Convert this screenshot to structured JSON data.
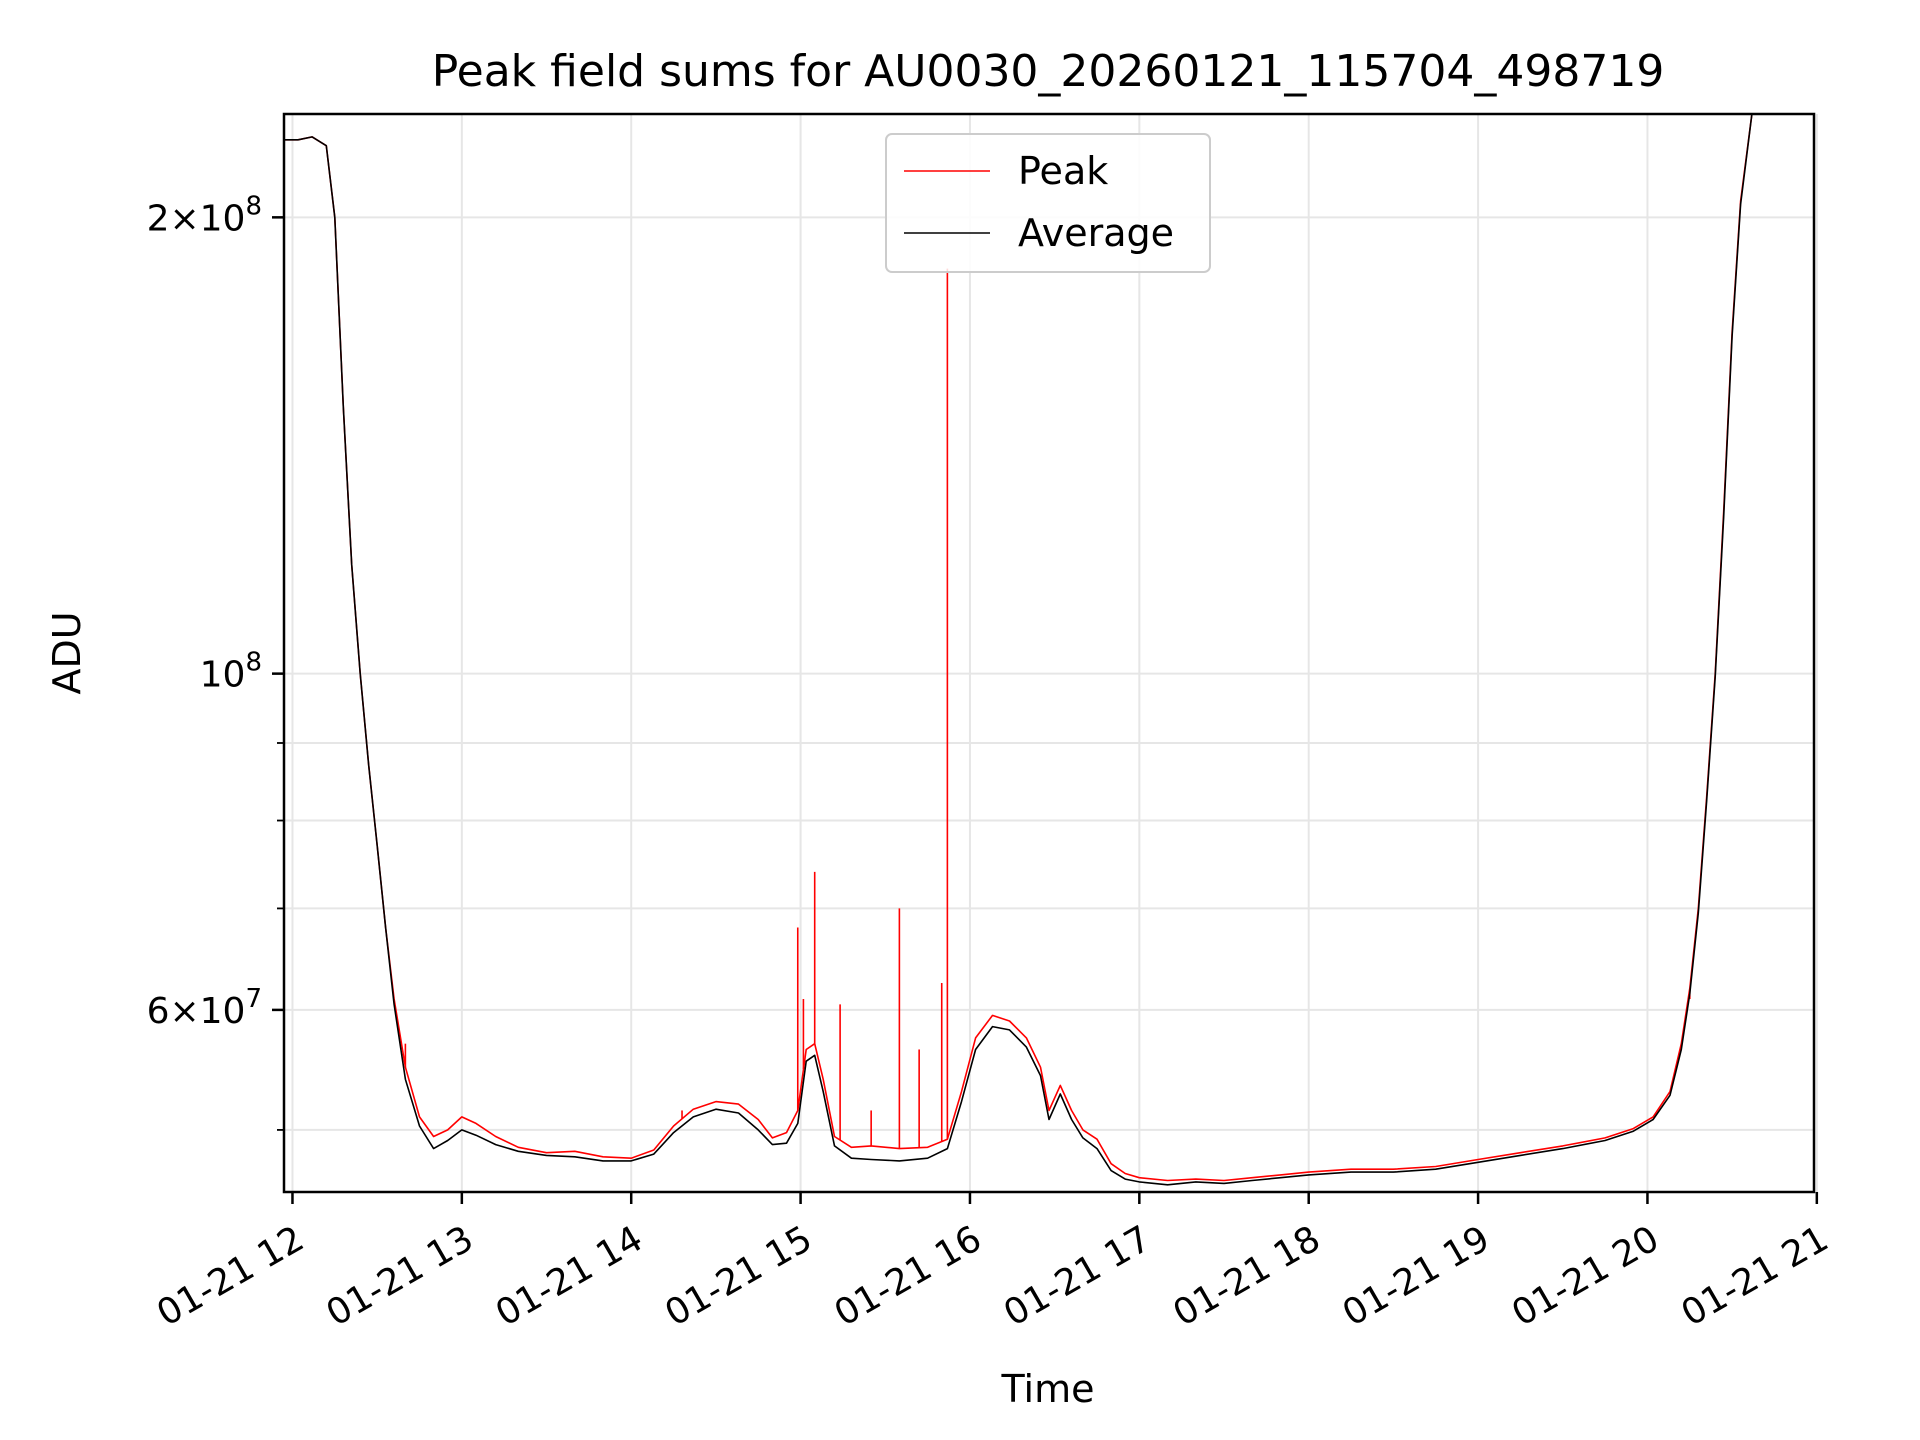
{
  "chart_data": {
    "type": "line",
    "title": "Peak field sums for AU0030_20260121_115704_498719",
    "xlabel": "Time",
    "ylabel": "ADU",
    "y_scale": "log",
    "ylim": [
      45500000,
      234000000
    ],
    "xlim": [
      "2026-01-21 11:57",
      "2026-01-21 20:59"
    ],
    "grid": true,
    "legend_position": "top-center",
    "x_ticks": [
      {
        "t": "2026-01-21 12:00",
        "label": "01-21 12"
      },
      {
        "t": "2026-01-21 13:00",
        "label": "01-21 13"
      },
      {
        "t": "2026-01-21 14:00",
        "label": "01-21 14"
      },
      {
        "t": "2026-01-21 15:00",
        "label": "01-21 15"
      },
      {
        "t": "2026-01-21 16:00",
        "label": "01-21 16"
      },
      {
        "t": "2026-01-21 17:00",
        "label": "01-21 17"
      },
      {
        "t": "2026-01-21 18:00",
        "label": "01-21 18"
      },
      {
        "t": "2026-01-21 19:00",
        "label": "01-21 19"
      },
      {
        "t": "2026-01-21 20:00",
        "label": "01-21 20"
      },
      {
        "t": "2026-01-21 21:00",
        "label": "01-21 21"
      }
    ],
    "y_major_ticks": [
      {
        "value": 60000000,
        "mantissa": "6",
        "sep": "×10",
        "exp": "7"
      },
      {
        "value": 100000000,
        "mantissa": "",
        "sep": "10",
        "exp": "8"
      },
      {
        "value": 200000000,
        "mantissa": "2",
        "sep": "×10",
        "exp": "8"
      }
    ],
    "y_minor_ticks": [
      50000000,
      70000000,
      80000000,
      90000000
    ],
    "series": [
      {
        "name": "Peak",
        "color": "#ff0000",
        "points": [
          [
            "2026-01-21 11:57",
            225000000
          ],
          [
            "2026-01-21 12:02",
            225000000
          ],
          [
            "2026-01-21 12:07",
            226000000
          ],
          [
            "2026-01-21 12:12",
            223000000
          ],
          [
            "2026-01-21 12:15",
            200000000
          ],
          [
            "2026-01-21 12:18",
            150000000
          ],
          [
            "2026-01-21 12:21",
            118000000
          ],
          [
            "2026-01-21 12:24",
            100000000
          ],
          [
            "2026-01-21 12:27",
            87000000
          ],
          [
            "2026-01-21 12:30",
            77000000
          ],
          [
            "2026-01-21 12:33",
            68000000
          ],
          [
            "2026-01-21 12:36",
            61000000
          ],
          [
            "2026-01-21 12:40",
            55000000
          ],
          [
            "2026-01-21 12:45",
            51000000
          ],
          [
            "2026-01-21 12:50",
            49500000
          ],
          [
            "2026-01-21 12:55",
            50000000
          ],
          [
            "2026-01-21 13:00",
            51000000
          ],
          [
            "2026-01-21 13:05",
            50500000
          ],
          [
            "2026-01-21 13:12",
            49500000
          ],
          [
            "2026-01-21 13:20",
            48700000
          ],
          [
            "2026-01-21 13:30",
            48300000
          ],
          [
            "2026-01-21 13:40",
            48400000
          ],
          [
            "2026-01-21 13:50",
            48000000
          ],
          [
            "2026-01-21 14:00",
            47900000
          ],
          [
            "2026-01-21 14:08",
            48500000
          ],
          [
            "2026-01-21 14:15",
            50300000
          ],
          [
            "2026-01-21 14:22",
            51600000
          ],
          [
            "2026-01-21 14:30",
            52200000
          ],
          [
            "2026-01-21 14:38",
            52000000
          ],
          [
            "2026-01-21 14:45",
            50800000
          ],
          [
            "2026-01-21 14:50",
            49400000
          ],
          [
            "2026-01-21 14:55",
            49800000
          ],
          [
            "2026-01-21 14:59",
            51500000
          ],
          [
            "2026-01-21 15:02",
            56500000
          ],
          [
            "2026-01-21 15:05",
            57000000
          ],
          [
            "2026-01-21 15:08",
            54000000
          ],
          [
            "2026-01-21 15:12",
            49500000
          ],
          [
            "2026-01-21 15:18",
            48700000
          ],
          [
            "2026-01-21 15:25",
            48800000
          ],
          [
            "2026-01-21 15:35",
            48600000
          ],
          [
            "2026-01-21 15:45",
            48700000
          ],
          [
            "2026-01-21 15:52",
            49300000
          ],
          [
            "2026-01-21 15:57",
            53000000
          ],
          [
            "2026-01-21 16:02",
            57500000
          ],
          [
            "2026-01-21 16:08",
            59500000
          ],
          [
            "2026-01-21 16:14",
            59000000
          ],
          [
            "2026-01-21 16:20",
            57500000
          ],
          [
            "2026-01-21 16:25",
            55000000
          ],
          [
            "2026-01-21 16:28",
            51500000
          ],
          [
            "2026-01-21 16:32",
            53500000
          ],
          [
            "2026-01-21 16:36",
            51500000
          ],
          [
            "2026-01-21 16:40",
            50000000
          ],
          [
            "2026-01-21 16:45",
            49300000
          ],
          [
            "2026-01-21 16:50",
            47500000
          ],
          [
            "2026-01-21 16:55",
            46800000
          ],
          [
            "2026-01-21 17:00",
            46500000
          ],
          [
            "2026-01-21 17:10",
            46300000
          ],
          [
            "2026-01-21 17:20",
            46400000
          ],
          [
            "2026-01-21 17:30",
            46300000
          ],
          [
            "2026-01-21 17:40",
            46500000
          ],
          [
            "2026-01-21 17:50",
            46700000
          ],
          [
            "2026-01-21 18:00",
            46900000
          ],
          [
            "2026-01-21 18:15",
            47100000
          ],
          [
            "2026-01-21 18:30",
            47100000
          ],
          [
            "2026-01-21 18:45",
            47300000
          ],
          [
            "2026-01-21 19:00",
            47800000
          ],
          [
            "2026-01-21 19:15",
            48300000
          ],
          [
            "2026-01-21 19:30",
            48800000
          ],
          [
            "2026-01-21 19:45",
            49400000
          ],
          [
            "2026-01-21 19:55",
            50100000
          ],
          [
            "2026-01-21 20:02",
            51000000
          ],
          [
            "2026-01-21 20:08",
            53000000
          ],
          [
            "2026-01-21 20:12",
            57000000
          ],
          [
            "2026-01-21 20:15",
            62000000
          ],
          [
            "2026-01-21 20:18",
            70000000
          ],
          [
            "2026-01-21 20:21",
            83000000
          ],
          [
            "2026-01-21 20:24",
            100000000
          ],
          [
            "2026-01-21 20:27",
            128000000
          ],
          [
            "2026-01-21 20:30",
            168000000
          ],
          [
            "2026-01-21 20:33",
            205000000
          ],
          [
            "2026-01-21 20:37",
            234000000
          ]
        ],
        "spikes": [
          [
            "2026-01-21 15:52",
            185000000
          ],
          [
            "2026-01-21 15:05",
            74000000
          ],
          [
            "2026-01-21 14:59",
            68000000
          ],
          [
            "2026-01-21 15:35",
            70000000
          ],
          [
            "2026-01-21 15:50",
            62500000
          ],
          [
            "2026-01-21 15:01",
            61000000
          ],
          [
            "2026-01-21 15:14",
            60500000
          ],
          [
            "2026-01-21 15:42",
            56500000
          ],
          [
            "2026-01-21 15:25",
            51500000
          ],
          [
            "2026-01-21 20:15",
            61000000
          ],
          [
            "2026-01-21 12:40",
            57000000
          ],
          [
            "2026-01-21 14:18",
            51500000
          ]
        ]
      },
      {
        "name": "Average",
        "color": "#000000",
        "points": [
          [
            "2026-01-21 11:57",
            225000000
          ],
          [
            "2026-01-21 12:02",
            225000000
          ],
          [
            "2026-01-21 12:07",
            226000000
          ],
          [
            "2026-01-21 12:12",
            223000000
          ],
          [
            "2026-01-21 12:15",
            200000000
          ],
          [
            "2026-01-21 12:18",
            150000000
          ],
          [
            "2026-01-21 12:21",
            118000000
          ],
          [
            "2026-01-21 12:24",
            100000000
          ],
          [
            "2026-01-21 12:27",
            87000000
          ],
          [
            "2026-01-21 12:30",
            77000000
          ],
          [
            "2026-01-21 12:33",
            68000000
          ],
          [
            "2026-01-21 12:36",
            60500000
          ],
          [
            "2026-01-21 12:40",
            54000000
          ],
          [
            "2026-01-21 12:45",
            50300000
          ],
          [
            "2026-01-21 12:50",
            48600000
          ],
          [
            "2026-01-21 12:55",
            49200000
          ],
          [
            "2026-01-21 13:00",
            50000000
          ],
          [
            "2026-01-21 13:05",
            49600000
          ],
          [
            "2026-01-21 13:12",
            48900000
          ],
          [
            "2026-01-21 13:20",
            48400000
          ],
          [
            "2026-01-21 13:30",
            48100000
          ],
          [
            "2026-01-21 13:40",
            48000000
          ],
          [
            "2026-01-21 13:50",
            47700000
          ],
          [
            "2026-01-21 14:00",
            47700000
          ],
          [
            "2026-01-21 14:08",
            48200000
          ],
          [
            "2026-01-21 14:15",
            49800000
          ],
          [
            "2026-01-21 14:22",
            51000000
          ],
          [
            "2026-01-21 14:30",
            51600000
          ],
          [
            "2026-01-21 14:38",
            51300000
          ],
          [
            "2026-01-21 14:45",
            50000000
          ],
          [
            "2026-01-21 14:50",
            48900000
          ],
          [
            "2026-01-21 14:55",
            49000000
          ],
          [
            "2026-01-21 14:59",
            50500000
          ],
          [
            "2026-01-21 15:02",
            55500000
          ],
          [
            "2026-01-21 15:05",
            56000000
          ],
          [
            "2026-01-21 15:08",
            53000000
          ],
          [
            "2026-01-21 15:12",
            48800000
          ],
          [
            "2026-01-21 15:18",
            47900000
          ],
          [
            "2026-01-21 15:25",
            47800000
          ],
          [
            "2026-01-21 15:35",
            47700000
          ],
          [
            "2026-01-21 15:45",
            47900000
          ],
          [
            "2026-01-21 15:52",
            48600000
          ],
          [
            "2026-01-21 15:57",
            52200000
          ],
          [
            "2026-01-21 16:02",
            56500000
          ],
          [
            "2026-01-21 16:08",
            58500000
          ],
          [
            "2026-01-21 16:14",
            58200000
          ],
          [
            "2026-01-21 16:20",
            56700000
          ],
          [
            "2026-01-21 16:25",
            54300000
          ],
          [
            "2026-01-21 16:28",
            50800000
          ],
          [
            "2026-01-21 16:32",
            52800000
          ],
          [
            "2026-01-21 16:36",
            50800000
          ],
          [
            "2026-01-21 16:40",
            49400000
          ],
          [
            "2026-01-21 16:45",
            48600000
          ],
          [
            "2026-01-21 16:50",
            47000000
          ],
          [
            "2026-01-21 16:55",
            46400000
          ],
          [
            "2026-01-21 17:00",
            46200000
          ],
          [
            "2026-01-21 17:10",
            46000000
          ],
          [
            "2026-01-21 17:20",
            46200000
          ],
          [
            "2026-01-21 17:30",
            46100000
          ],
          [
            "2026-01-21 17:40",
            46300000
          ],
          [
            "2026-01-21 17:50",
            46500000
          ],
          [
            "2026-01-21 18:00",
            46700000
          ],
          [
            "2026-01-21 18:15",
            46900000
          ],
          [
            "2026-01-21 18:30",
            46900000
          ],
          [
            "2026-01-21 18:45",
            47100000
          ],
          [
            "2026-01-21 19:00",
            47600000
          ],
          [
            "2026-01-21 19:15",
            48100000
          ],
          [
            "2026-01-21 19:30",
            48600000
          ],
          [
            "2026-01-21 19:45",
            49200000
          ],
          [
            "2026-01-21 19:55",
            49900000
          ],
          [
            "2026-01-21 20:02",
            50800000
          ],
          [
            "2026-01-21 20:08",
            52700000
          ],
          [
            "2026-01-21 20:12",
            56500000
          ],
          [
            "2026-01-21 20:15",
            61500000
          ],
          [
            "2026-01-21 20:18",
            69500000
          ],
          [
            "2026-01-21 20:21",
            82500000
          ],
          [
            "2026-01-21 20:24",
            99500000
          ],
          [
            "2026-01-21 20:27",
            127000000
          ],
          [
            "2026-01-21 20:30",
            167000000
          ],
          [
            "2026-01-21 20:33",
            204000000
          ],
          [
            "2026-01-21 20:37",
            234000000
          ]
        ]
      }
    ]
  }
}
